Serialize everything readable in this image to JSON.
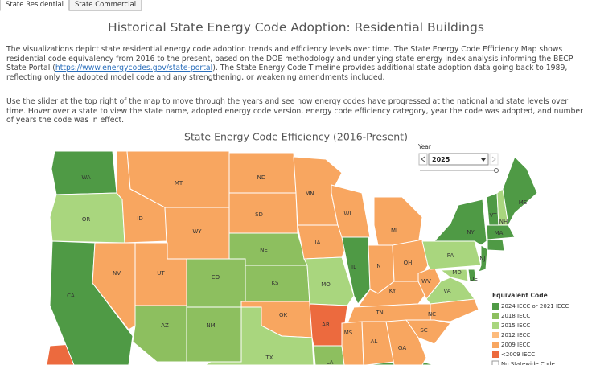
{
  "tabs": [
    "State Residential",
    "State Commercial"
  ],
  "header": {
    "title": "Historical State Energy Code Adoption: Residential Buildings"
  },
  "intro": {
    "p1_before": "The visualizations depict state residential energy code adoption trends and efficiency levels over time. The State Energy Code Efficiency Map shows residential code equivalency from 2016 to the present, based on the DOE methodology and underlying state energy index analysis informing the BECP State Portal (",
    "p1_link": "https://www.energycodes.gov/state-portal",
    "p1_after": "). The State Energy Code Timeline provides additional state adoption data going back to 1989, reflecting only the adopted model code and any strengthening, or weakening amendments included.",
    "p2": "Use the slider at the top right of the map to move through the years and see how energy codes have progressed at the national and state levels over time. Hover over a state to view the state name, adopted energy code version, energy code efficiency category, year the code was adopted, and number of years the code was in effect."
  },
  "map": {
    "title": "State Energy Code Efficiency (2016-Present)",
    "year_control": {
      "label": "Year",
      "selected": "2025"
    },
    "legend": {
      "title": "Equivalent Code",
      "items": [
        {
          "label": "2024 IECC or 2021 IECC",
          "color": "#4f9a45"
        },
        {
          "label": "2018 IECC",
          "color": "#8dbf5f"
        },
        {
          "label": "2015 IECC",
          "color": "#a9d67e"
        },
        {
          "label": "2012 IECC",
          "color": "#fdbb7c"
        },
        {
          "label": "2009 IECC",
          "color": "#f8a660"
        },
        {
          "label": "<2009 IECC",
          "color": "#ec6a3e"
        },
        {
          "label": "No Statewide Code",
          "color": "#ffffff"
        }
      ]
    },
    "states": [
      {
        "abbr": "WA",
        "code": "2024 IECC or 2021 IECC"
      },
      {
        "abbr": "OR",
        "code": "2015 IECC"
      },
      {
        "abbr": "CA",
        "code": "2024 IECC or 2021 IECC"
      },
      {
        "abbr": "NV",
        "code": "2009 IECC"
      },
      {
        "abbr": "ID",
        "code": "2009 IECC"
      },
      {
        "abbr": "MT",
        "code": "2009 IECC"
      },
      {
        "abbr": "WY",
        "code": "2009 IECC"
      },
      {
        "abbr": "UT",
        "code": "2009 IECC"
      },
      {
        "abbr": "CO",
        "code": "2018 IECC"
      },
      {
        "abbr": "AZ",
        "code": "2018 IECC"
      },
      {
        "abbr": "NM",
        "code": "2018 IECC"
      },
      {
        "abbr": "ND",
        "code": "2009 IECC"
      },
      {
        "abbr": "SD",
        "code": "2009 IECC"
      },
      {
        "abbr": "NE",
        "code": "2018 IECC"
      },
      {
        "abbr": "KS",
        "code": "2018 IECC"
      },
      {
        "abbr": "OK",
        "code": "2009 IECC"
      },
      {
        "abbr": "TX",
        "code": "2015 IECC"
      },
      {
        "abbr": "MN",
        "code": "2009 IECC"
      },
      {
        "abbr": "IA",
        "code": "2009 IECC"
      },
      {
        "abbr": "MO",
        "code": "2015 IECC"
      },
      {
        "abbr": "AR",
        "code": "<2009 IECC"
      },
      {
        "abbr": "LA",
        "code": "2018 IECC"
      },
      {
        "abbr": "WI",
        "code": "2009 IECC"
      },
      {
        "abbr": "IL",
        "code": "2024 IECC or 2021 IECC"
      },
      {
        "abbr": "MI",
        "code": "2009 IECC"
      },
      {
        "abbr": "IN",
        "code": "2009 IECC"
      },
      {
        "abbr": "OH",
        "code": "2009 IECC"
      },
      {
        "abbr": "KY",
        "code": "2009 IECC"
      },
      {
        "abbr": "WV",
        "code": "2009 IECC"
      },
      {
        "abbr": "PA",
        "code": "2015 IECC"
      },
      {
        "abbr": "NY",
        "code": "2024 IECC or 2021 IECC"
      },
      {
        "abbr": "VA",
        "code": "2015 IECC"
      },
      {
        "abbr": "MD",
        "code": "2015 IECC"
      },
      {
        "abbr": "NJ",
        "code": "2024 IECC or 2021 IECC"
      },
      {
        "abbr": "DE",
        "code": "2024 IECC or 2021 IECC"
      },
      {
        "abbr": "TN",
        "code": "2009 IECC"
      },
      {
        "abbr": "NC",
        "code": "2009 IECC"
      },
      {
        "abbr": "SC",
        "code": "2009 IECC"
      },
      {
        "abbr": "MS",
        "code": "2009 IECC"
      },
      {
        "abbr": "AL",
        "code": "2009 IECC"
      },
      {
        "abbr": "GA",
        "code": "2009 IECC"
      },
      {
        "abbr": "VT",
        "code": "2024 IECC or 2021 IECC"
      },
      {
        "abbr": "NH",
        "code": "2015 IECC"
      },
      {
        "abbr": "ME",
        "code": "2024 IECC or 2021 IECC"
      },
      {
        "abbr": "MA",
        "code": "2024 IECC or 2021 IECC"
      }
    ]
  }
}
